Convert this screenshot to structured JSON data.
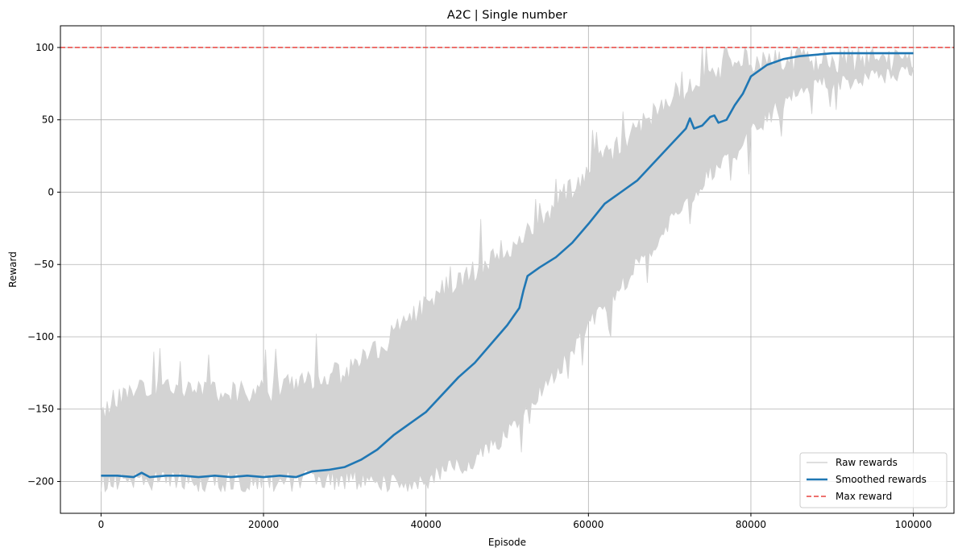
{
  "chart_data": {
    "type": "line",
    "title": "A2C | Single number",
    "xlabel": "Episode",
    "ylabel": "Reward",
    "xlim": [
      -5000,
      105000
    ],
    "ylim": [
      -222,
      115
    ],
    "grid": true,
    "legend_position": "lower-right",
    "x_ticks": [
      0,
      20000,
      40000,
      60000,
      80000,
      100000
    ],
    "x_tick_labels": [
      "0",
      "20000",
      "40000",
      "60000",
      "80000",
      "100000"
    ],
    "y_ticks": [
      -200,
      -150,
      -100,
      -50,
      0,
      50,
      100
    ],
    "y_tick_labels": [
      "−200",
      "−150",
      "−100",
      "−50",
      "0",
      "50",
      "100"
    ],
    "series": [
      {
        "name": "Raw rewards",
        "color": "#d3d3d3",
        "style": "band",
        "x": [
          0,
          5000,
          10000,
          15000,
          20000,
          25000,
          30000,
          35000,
          40000,
          42000,
          45000,
          50000,
          55000,
          60000,
          65000,
          70000,
          75000,
          78000,
          80000,
          85000,
          90000,
          95000,
          100000
        ],
        "upper": [
          -140,
          -125,
          -128,
          -130,
          -128,
          -125,
          -115,
          -95,
          -70,
          -60,
          -50,
          -30,
          -5,
          25,
          45,
          75,
          90,
          100,
          100,
          100,
          100,
          100,
          100
        ],
        "lower": [
          -206,
          -206,
          -206,
          -206,
          -206,
          -206,
          -206,
          -206,
          -206,
          -200,
          -195,
          -175,
          -140,
          -100,
          -65,
          -30,
          5,
          20,
          35,
          58,
          70,
          72,
          78
        ]
      },
      {
        "name": "Smoothed rewards",
        "color": "#1f77b4",
        "style": "solid",
        "x": [
          0,
          2000,
          4000,
          5000,
          6000,
          8000,
          10000,
          12000,
          14000,
          16000,
          18000,
          20000,
          22000,
          24000,
          25000,
          26000,
          28000,
          30000,
          32000,
          34000,
          36000,
          38000,
          40000,
          42000,
          44000,
          46000,
          48000,
          50000,
          51500,
          52000,
          52500,
          54000,
          56000,
          58000,
          60000,
          62000,
          64000,
          66000,
          68000,
          70000,
          72000,
          72500,
          73000,
          74000,
          75000,
          75500,
          76000,
          77000,
          78000,
          79000,
          80000,
          82000,
          84000,
          86000,
          88000,
          90000,
          95000,
          100000
        ],
        "y": [
          -196,
          -196,
          -197,
          -194,
          -197,
          -196,
          -196,
          -197,
          -196,
          -197,
          -196,
          -197,
          -196,
          -197,
          -195,
          -193,
          -192,
          -190,
          -185,
          -178,
          -168,
          -160,
          -152,
          -140,
          -128,
          -118,
          -105,
          -92,
          -80,
          -68,
          -58,
          -52,
          -45,
          -35,
          -22,
          -8,
          0,
          8,
          20,
          32,
          44,
          51,
          44,
          46,
          52,
          53,
          48,
          50,
          60,
          68,
          80,
          88,
          92,
          94,
          95,
          96,
          96,
          96
        ]
      },
      {
        "name": "Max reward",
        "color": "#e8433f",
        "style": "dashed",
        "y": 100
      }
    ]
  }
}
